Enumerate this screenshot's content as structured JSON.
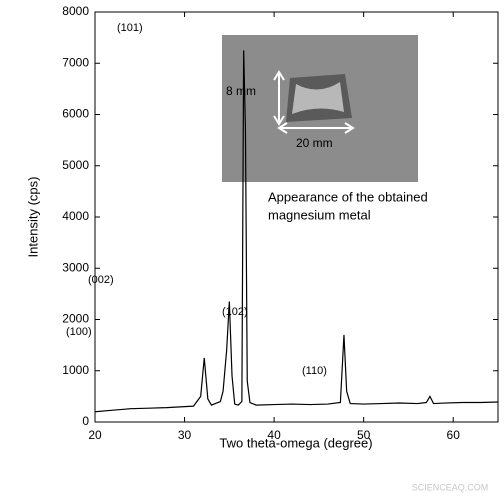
{
  "chart_data": {
    "type": "line",
    "x_label": "Two theta-omega (degree)",
    "y_label": "Intensity (cps)",
    "xlim": [
      20,
      65
    ],
    "xticks": [
      20,
      30,
      40,
      50,
      60
    ],
    "ylim": [
      0,
      8000
    ],
    "yticks": [
      0,
      1000,
      2000,
      3000,
      4000,
      5000,
      6000,
      7000,
      8000
    ],
    "series": [
      {
        "color": "#000000",
        "x": [
          20,
          22,
          24,
          26,
          28,
          30,
          31,
          31.8,
          32.2,
          32.6,
          33,
          34,
          34.3,
          34.5,
          34.7,
          35,
          35.3,
          35.6,
          36,
          36.4,
          36.6,
          36.8,
          37,
          37.3,
          38,
          40,
          42,
          44,
          46,
          47.4,
          47.8,
          48.1,
          48.5,
          50,
          52,
          54,
          56,
          57,
          57.4,
          57.8,
          59,
          61,
          63,
          65
        ],
        "values": [
          200,
          230,
          260,
          270,
          280,
          300,
          310,
          500,
          1250,
          450,
          330,
          400,
          600,
          1000,
          1400,
          2350,
          900,
          350,
          330,
          400,
          7250,
          5700,
          800,
          380,
          330,
          340,
          350,
          340,
          350,
          380,
          1700,
          600,
          360,
          350,
          360,
          370,
          360,
          380,
          500,
          360,
          370,
          380,
          380,
          390
        ]
      }
    ],
    "peak_labels": [
      "(101)",
      "(002)",
      "(100)",
      "(102)",
      "(110)"
    ],
    "inset": {
      "height_label": "8 mm",
      "width_label": "20 mm",
      "caption": [
        "Appearance of the obtained",
        "magnesium metal"
      ]
    },
    "watermark": "SCIENCEAQ.COM"
  }
}
